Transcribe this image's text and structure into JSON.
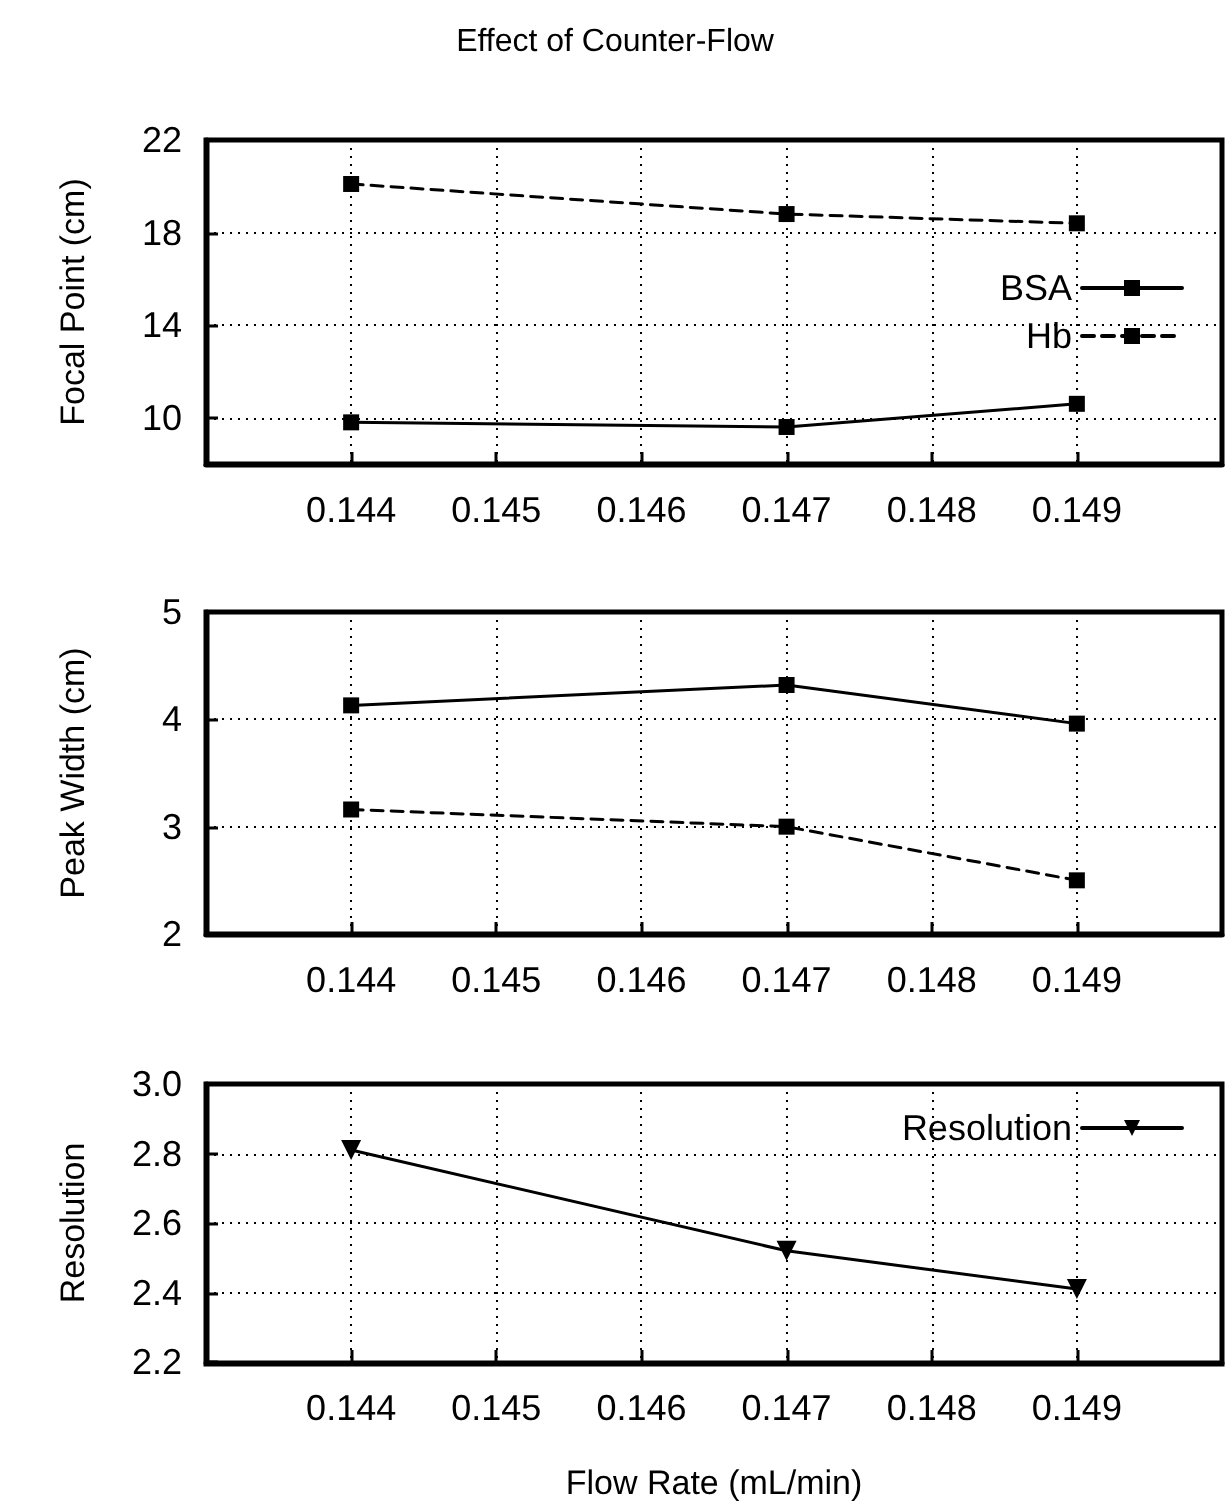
{
  "chart_data": [
    {
      "type": "line",
      "title": "Effect of Counter-Flow",
      "ylabel": "Focal Point (cm)",
      "x": [
        0.144,
        0.147,
        0.149
      ],
      "xlim": [
        0.143,
        0.15
      ],
      "xticks": [
        0.144,
        0.145,
        0.146,
        0.147,
        0.148,
        0.149
      ],
      "ylim": [
        8,
        22
      ],
      "yticks": [
        10,
        14,
        18,
        22
      ],
      "grid": true,
      "legend": "right",
      "series": [
        {
          "name": "BSA",
          "color": "#000000",
          "values": [
            9.8,
            9.6,
            10.6
          ],
          "marker": "square",
          "line_style": "solid"
        },
        {
          "name": "Hb",
          "color": "#000000",
          "values": [
            20.1,
            18.8,
            18.4
          ],
          "marker": "square",
          "line_style": "dashed"
        }
      ]
    },
    {
      "type": "line",
      "ylabel": "Peak Width (cm)",
      "x": [
        0.144,
        0.147,
        0.149
      ],
      "xlim": [
        0.143,
        0.15
      ],
      "xticks": [
        0.144,
        0.145,
        0.146,
        0.147,
        0.148,
        0.149
      ],
      "ylim": [
        2,
        5
      ],
      "yticks": [
        2,
        3,
        4,
        5
      ],
      "grid": true,
      "series": [
        {
          "color": "#000000",
          "values": [
            4.13,
            4.32,
            3.96
          ],
          "marker": "square",
          "line_style": "solid"
        },
        {
          "color": "#000000",
          "values": [
            3.16,
            3.0,
            2.5
          ],
          "marker": "square",
          "line_style": "dashed"
        }
      ]
    },
    {
      "type": "line",
      "ylabel": "Resolution",
      "xlabel": "Flow Rate (mL/min)",
      "x": [
        0.144,
        0.147,
        0.149
      ],
      "xlim": [
        0.143,
        0.15
      ],
      "xticks": [
        0.144,
        0.145,
        0.146,
        0.147,
        0.148,
        0.149
      ],
      "ylim": [
        2.2,
        3.0
      ],
      "yticks": [
        2.2,
        2.4,
        2.6,
        2.8,
        {
          "value": 3,
          "label": "3.0"
        }
      ],
      "grid": true,
      "legend": "top right",
      "series": [
        {
          "name": "Resolution",
          "color": "#000000",
          "values": [
            2.81,
            2.52,
            2.41
          ],
          "marker": "triangle",
          "line_style": "solid"
        }
      ]
    }
  ]
}
